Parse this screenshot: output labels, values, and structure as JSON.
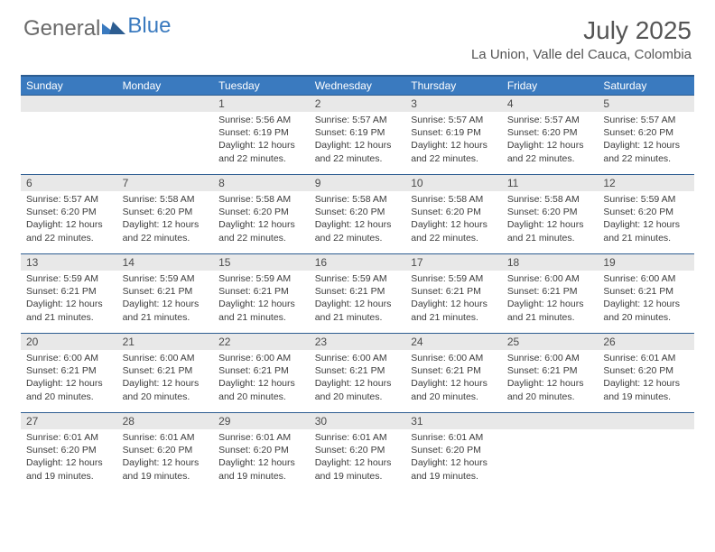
{
  "logo": {
    "general": "General",
    "blue": "Blue"
  },
  "header": {
    "title": "July 2025",
    "location": "La Union, Valle del Cauca, Colombia"
  },
  "colors": {
    "header_bg": "#3a7abf",
    "header_border": "#2d5d91",
    "daynum_bg": "#e8e8e8",
    "text_dark": "#3c3c3c",
    "text_mid": "#555555",
    "logo_gray": "#6a6a6a",
    "logo_blue": "#3a7abf"
  },
  "dayNames": [
    "Sunday",
    "Monday",
    "Tuesday",
    "Wednesday",
    "Thursday",
    "Friday",
    "Saturday"
  ],
  "weeks": [
    [
      null,
      null,
      {
        "n": "1",
        "sr": "5:56 AM",
        "ss": "6:19 PM",
        "dl": "12 hours and 22 minutes."
      },
      {
        "n": "2",
        "sr": "5:57 AM",
        "ss": "6:19 PM",
        "dl": "12 hours and 22 minutes."
      },
      {
        "n": "3",
        "sr": "5:57 AM",
        "ss": "6:19 PM",
        "dl": "12 hours and 22 minutes."
      },
      {
        "n": "4",
        "sr": "5:57 AM",
        "ss": "6:20 PM",
        "dl": "12 hours and 22 minutes."
      },
      {
        "n": "5",
        "sr": "5:57 AM",
        "ss": "6:20 PM",
        "dl": "12 hours and 22 minutes."
      }
    ],
    [
      {
        "n": "6",
        "sr": "5:57 AM",
        "ss": "6:20 PM",
        "dl": "12 hours and 22 minutes."
      },
      {
        "n": "7",
        "sr": "5:58 AM",
        "ss": "6:20 PM",
        "dl": "12 hours and 22 minutes."
      },
      {
        "n": "8",
        "sr": "5:58 AM",
        "ss": "6:20 PM",
        "dl": "12 hours and 22 minutes."
      },
      {
        "n": "9",
        "sr": "5:58 AM",
        "ss": "6:20 PM",
        "dl": "12 hours and 22 minutes."
      },
      {
        "n": "10",
        "sr": "5:58 AM",
        "ss": "6:20 PM",
        "dl": "12 hours and 22 minutes."
      },
      {
        "n": "11",
        "sr": "5:58 AM",
        "ss": "6:20 PM",
        "dl": "12 hours and 21 minutes."
      },
      {
        "n": "12",
        "sr": "5:59 AM",
        "ss": "6:20 PM",
        "dl": "12 hours and 21 minutes."
      }
    ],
    [
      {
        "n": "13",
        "sr": "5:59 AM",
        "ss": "6:21 PM",
        "dl": "12 hours and 21 minutes."
      },
      {
        "n": "14",
        "sr": "5:59 AM",
        "ss": "6:21 PM",
        "dl": "12 hours and 21 minutes."
      },
      {
        "n": "15",
        "sr": "5:59 AM",
        "ss": "6:21 PM",
        "dl": "12 hours and 21 minutes."
      },
      {
        "n": "16",
        "sr": "5:59 AM",
        "ss": "6:21 PM",
        "dl": "12 hours and 21 minutes."
      },
      {
        "n": "17",
        "sr": "5:59 AM",
        "ss": "6:21 PM",
        "dl": "12 hours and 21 minutes."
      },
      {
        "n": "18",
        "sr": "6:00 AM",
        "ss": "6:21 PM",
        "dl": "12 hours and 21 minutes."
      },
      {
        "n": "19",
        "sr": "6:00 AM",
        "ss": "6:21 PM",
        "dl": "12 hours and 20 minutes."
      }
    ],
    [
      {
        "n": "20",
        "sr": "6:00 AM",
        "ss": "6:21 PM",
        "dl": "12 hours and 20 minutes."
      },
      {
        "n": "21",
        "sr": "6:00 AM",
        "ss": "6:21 PM",
        "dl": "12 hours and 20 minutes."
      },
      {
        "n": "22",
        "sr": "6:00 AM",
        "ss": "6:21 PM",
        "dl": "12 hours and 20 minutes."
      },
      {
        "n": "23",
        "sr": "6:00 AM",
        "ss": "6:21 PM",
        "dl": "12 hours and 20 minutes."
      },
      {
        "n": "24",
        "sr": "6:00 AM",
        "ss": "6:21 PM",
        "dl": "12 hours and 20 minutes."
      },
      {
        "n": "25",
        "sr": "6:00 AM",
        "ss": "6:21 PM",
        "dl": "12 hours and 20 minutes."
      },
      {
        "n": "26",
        "sr": "6:01 AM",
        "ss": "6:20 PM",
        "dl": "12 hours and 19 minutes."
      }
    ],
    [
      {
        "n": "27",
        "sr": "6:01 AM",
        "ss": "6:20 PM",
        "dl": "12 hours and 19 minutes."
      },
      {
        "n": "28",
        "sr": "6:01 AM",
        "ss": "6:20 PM",
        "dl": "12 hours and 19 minutes."
      },
      {
        "n": "29",
        "sr": "6:01 AM",
        "ss": "6:20 PM",
        "dl": "12 hours and 19 minutes."
      },
      {
        "n": "30",
        "sr": "6:01 AM",
        "ss": "6:20 PM",
        "dl": "12 hours and 19 minutes."
      },
      {
        "n": "31",
        "sr": "6:01 AM",
        "ss": "6:20 PM",
        "dl": "12 hours and 19 minutes."
      },
      null,
      null
    ]
  ],
  "labels": {
    "sunrise": "Sunrise:",
    "sunset": "Sunset:",
    "daylight": "Daylight:"
  }
}
